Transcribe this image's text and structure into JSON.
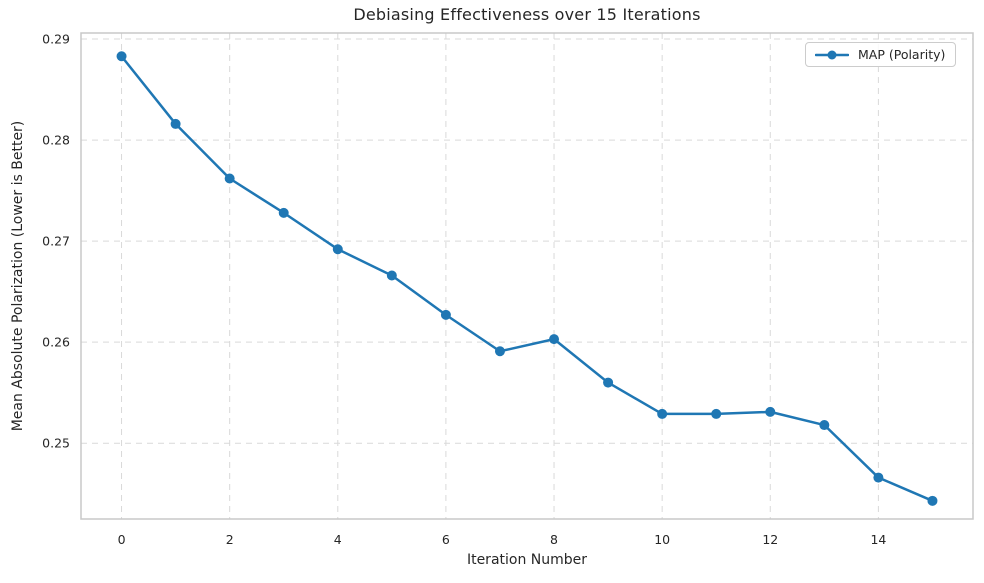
{
  "figure": {
    "background": "#ffffff",
    "text_color": "#262626",
    "spine_color": "#c8c8c8"
  },
  "chart_data": {
    "type": "line",
    "title": "Debiasing Effectiveness over 15 Iterations",
    "xlabel": "Iteration Number",
    "ylabel": "Mean Absolute Polarization (Lower is Better)",
    "x": [
      0,
      1,
      2,
      3,
      4,
      5,
      6,
      7,
      8,
      9,
      10,
      11,
      12,
      13,
      14,
      15
    ],
    "series": [
      {
        "name": "MAP (Polarity)",
        "color": "#1f77b4",
        "marker": "circle",
        "line_width": 2.5,
        "marker_radius": 5,
        "values": [
          0.2883,
          0.2816,
          0.2762,
          0.2728,
          0.2692,
          0.2666,
          0.2627,
          0.2591,
          0.2603,
          0.256,
          0.2529,
          0.2529,
          0.2531,
          0.2518,
          0.2466,
          0.2443
        ]
      }
    ],
    "xticks": [
      0,
      2,
      4,
      6,
      8,
      10,
      12,
      14
    ],
    "yticks": [
      0.25,
      0.26,
      0.27,
      0.28,
      0.29
    ],
    "xlim": [
      -0.75,
      15.75
    ],
    "ylim": [
      0.2425,
      0.2906
    ],
    "grid": {
      "visible": true,
      "style": "dashed",
      "color": "#d9d9d9"
    },
    "legend": {
      "position": "upper right",
      "entries": [
        "MAP (Polarity)"
      ]
    }
  }
}
